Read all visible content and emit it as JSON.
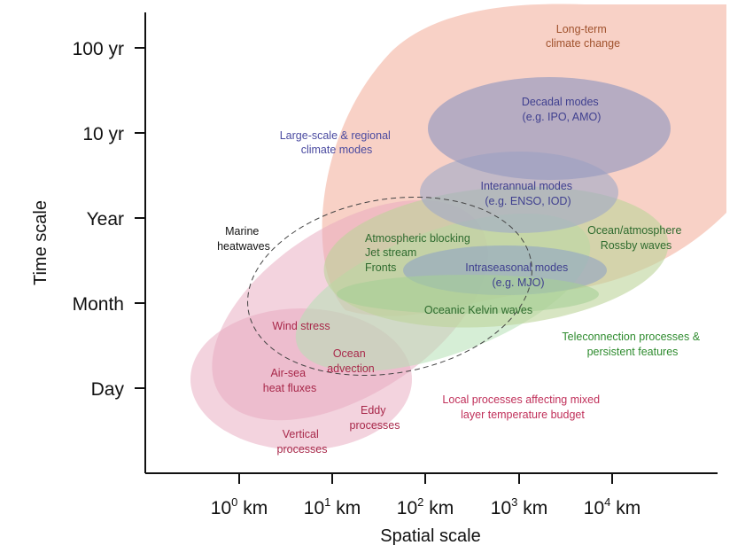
{
  "axes": {
    "x_title": "Spatial scale",
    "y_title": "Time scale",
    "x_ticks": [
      {
        "base": "10",
        "exp": "0",
        "unit": "km"
      },
      {
        "base": "10",
        "exp": "1",
        "unit": "km"
      },
      {
        "base": "10",
        "exp": "2",
        "unit": "km"
      },
      {
        "base": "10",
        "exp": "3",
        "unit": "km"
      },
      {
        "base": "10",
        "exp": "4",
        "unit": "km"
      }
    ],
    "y_ticks": [
      "Day",
      "Month",
      "Year",
      "10 yr",
      "100 yr"
    ]
  },
  "regions": {
    "long_term": {
      "line1": "Long-term",
      "line2": "climate change",
      "color": "#f4b8a8",
      "text_color": "#a0522d"
    },
    "decadal": {
      "line1": "Decadal modes",
      "line2": "(e.g. IPO, AMO)",
      "color": "#9a9cc0",
      "text_color": "#3f3f8f"
    },
    "interannual": {
      "line1": "Interannual modes",
      "line2": "(e.g. ENSO, IOD)",
      "color": "#9ea8c8",
      "text_color": "#3f3f8f"
    },
    "rossby": {
      "line1": "Ocean/atmosphere",
      "line2": "Rossby waves",
      "color": "#bcd39a",
      "text_color": "#2e6b2e"
    },
    "blocking": {
      "line1": "Atmospheric blocking",
      "line2": "Jet stream",
      "line3": "Fronts",
      "text_color": "#2e6b2e"
    },
    "intraseasonal": {
      "line1": "Intraseasonal modes",
      "line2": "(e.g. MJO)",
      "color": "#8fa4c4",
      "text_color": "#3f3f8f"
    },
    "kelvin": {
      "line1": "Oceanic Kelvin waves",
      "color": "#a7cf96",
      "text_color": "#2e6b2e"
    },
    "teleconnection": {
      "line1": "Teleconnection processes &",
      "line2": "persistent features",
      "color": "#b4e0b4",
      "text_color": "#2e8b2e"
    },
    "large_scale": {
      "line1": "Large-scale & regional",
      "line2": "climate modes",
      "text_color": "#4a4aa0"
    },
    "marine_heatwaves": {
      "line1": "Marine",
      "line2": "heatwaves",
      "text_color": "#111111"
    },
    "local": {
      "line1": "Local processes affecting mixed",
      "line2": "layer temperature budget",
      "color": "#e8a8bd",
      "text_color": "#c0305a"
    },
    "wind_stress": {
      "line1": "Wind stress",
      "text_color": "#a8284a"
    },
    "air_sea": {
      "line1": "Air-sea",
      "line2": "heat fluxes",
      "text_color": "#a8284a"
    },
    "ocean_advection": {
      "line1": "Ocean",
      "line2": "advection",
      "text_color": "#a8284a"
    },
    "eddy": {
      "line1": "Eddy",
      "line2": "processes",
      "text_color": "#a8284a"
    },
    "vertical": {
      "line1": "Vertical",
      "line2": "processes",
      "text_color": "#a8284a"
    }
  }
}
